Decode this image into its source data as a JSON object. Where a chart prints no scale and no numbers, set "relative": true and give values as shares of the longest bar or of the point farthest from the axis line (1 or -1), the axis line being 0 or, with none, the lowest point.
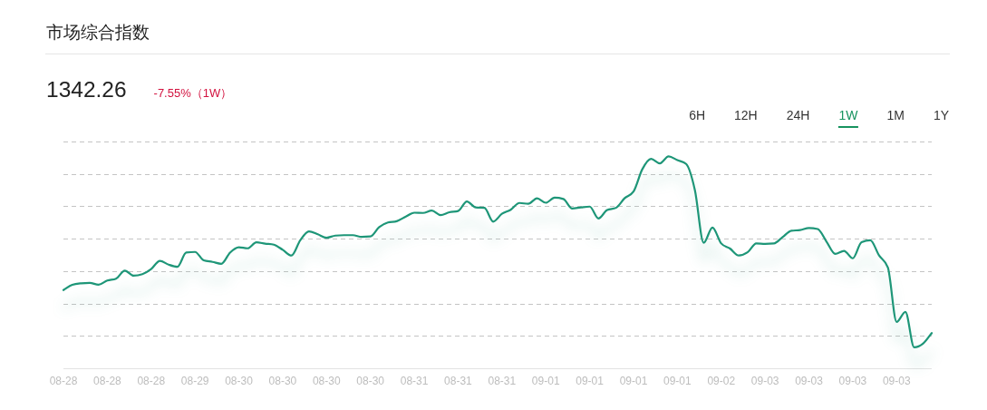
{
  "chart_data": {
    "type": "line",
    "title": "市场综合指数",
    "subtitle": "1342.26",
    "annotations": [
      "-7.55%（1W）",
      "6H",
      "12H",
      "24H",
      "1W",
      "1M",
      "1Y"
    ],
    "categories": [
      "08-28",
      null,
      null,
      null,
      null,
      "08-28",
      null,
      null,
      null,
      null,
      "08-28",
      null,
      null,
      null,
      null,
      "08-29",
      null,
      null,
      null,
      null,
      "08-30",
      null,
      null,
      null,
      null,
      "08-30",
      null,
      null,
      null,
      null,
      "08-30",
      null,
      null,
      null,
      null,
      "08-30",
      null,
      null,
      null,
      null,
      "08-31",
      null,
      null,
      null,
      null,
      "08-31",
      null,
      null,
      null,
      null,
      "08-31",
      null,
      null,
      null,
      null,
      "09-01",
      null,
      null,
      null,
      null,
      "09-01",
      null,
      null,
      null,
      null,
      "09-01",
      null,
      null,
      null,
      null,
      "09-01",
      null,
      null,
      null,
      null,
      "09-02",
      null,
      null,
      null,
      null,
      "09-03",
      null,
      null,
      null,
      null,
      "09-03",
      null,
      null,
      null,
      null,
      "09-03",
      null,
      null,
      null,
      null,
      "09-03",
      null,
      null,
      null,
      null
    ],
    "series": [
      {
        "color": "#1e9678",
        "values": [
          0.369,
          0.394,
          0.401,
          0.403,
          0.394,
          0.414,
          0.423,
          0.461,
          0.437,
          0.444,
          0.468,
          0.507,
          0.489,
          0.479,
          0.546,
          0.549,
          0.509,
          0.502,
          0.493,
          0.546,
          0.571,
          0.566,
          0.594,
          0.588,
          0.583,
          0.559,
          0.532,
          0.604,
          0.646,
          0.632,
          0.616,
          0.626,
          0.628,
          0.628,
          0.62,
          0.622,
          0.666,
          0.688,
          0.694,
          0.715,
          0.734,
          0.733,
          0.744,
          0.723,
          0.736,
          0.742,
          0.787,
          0.759,
          0.757,
          0.692,
          0.729,
          0.748,
          0.78,
          0.776,
          0.802,
          0.781,
          0.805,
          0.799,
          0.754,
          0.759,
          0.763,
          0.707,
          0.747,
          0.757,
          0.803,
          0.834,
          0.939,
          0.988,
          0.967,
          1,
          0.982,
          0.964,
          0.84,
          0.592,
          0.664,
          0.589,
          0.565,
          0.532,
          0.547,
          0.589,
          0.587,
          0.589,
          0.619,
          0.649,
          0.652,
          0.662,
          0.657,
          0.598,
          0.54,
          0.554,
          0.519,
          0.595,
          0.604,
          0.532,
          0.476,
          0.219,
          0.266,
          0.099,
          0.116,
          0.166
        ]
      }
    ],
    "relative": true,
    "grid": "y"
  }
}
